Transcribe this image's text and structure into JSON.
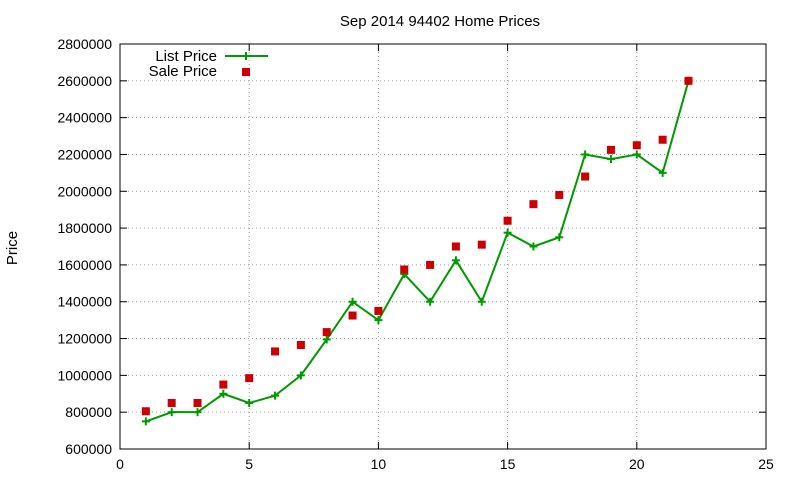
{
  "chart_data": {
    "type": "line",
    "title": "Sep 2014 94402 Home Prices",
    "xlabel": "",
    "ylabel": "Price",
    "xlim": [
      0,
      25
    ],
    "ylim": [
      600000,
      2800000
    ],
    "x_ticks": [
      0,
      5,
      10,
      15,
      20,
      25
    ],
    "y_ticks": [
      600000,
      800000,
      1000000,
      1200000,
      1400000,
      1600000,
      1800000,
      2000000,
      2200000,
      2400000,
      2600000,
      2800000
    ],
    "grid": true,
    "legend_position": "top-left",
    "series": [
      {
        "name": "List Price",
        "style": "line-with-plus-markers",
        "color": "#009900",
        "x": [
          1,
          2,
          3,
          4,
          5,
          6,
          7,
          8,
          9,
          10,
          11,
          12,
          13,
          14,
          15,
          16,
          17,
          18,
          19,
          20,
          21,
          22
        ],
        "values": [
          750000,
          800000,
          800000,
          900000,
          850000,
          890000,
          1000000,
          1195000,
          1400000,
          1300000,
          1550000,
          1400000,
          1625000,
          1400000,
          1775000,
          1700000,
          1750000,
          2200000,
          2175000,
          2200000,
          2100000,
          2600000
        ]
      },
      {
        "name": "Sale Price",
        "style": "square-markers",
        "color": "#cc0000",
        "x": [
          1,
          2,
          3,
          4,
          5,
          6,
          7,
          8,
          9,
          10,
          11,
          12,
          13,
          14,
          15,
          16,
          17,
          18,
          19,
          20,
          21,
          22
        ],
        "values": [
          805000,
          850000,
          850000,
          950000,
          985000,
          1130000,
          1165000,
          1235000,
          1325000,
          1350000,
          1575000,
          1600000,
          1700000,
          1710000,
          1840000,
          1930000,
          1980000,
          2080000,
          2225000,
          2250000,
          2280000,
          2600000
        ]
      }
    ]
  }
}
